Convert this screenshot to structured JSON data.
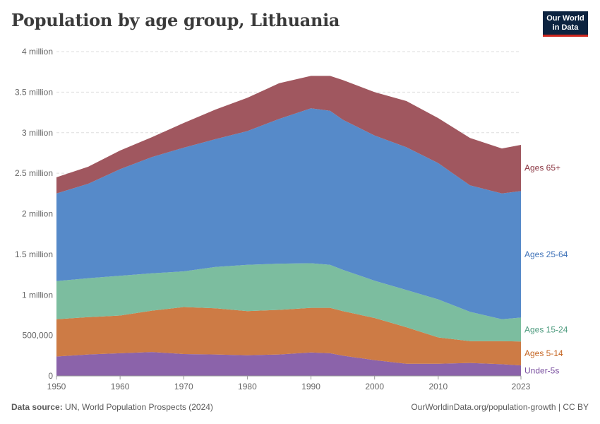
{
  "title": "Population by age group, Lithuania",
  "logo": {
    "line1": "Our World",
    "line2": "in Data"
  },
  "footer": {
    "source_label": "Data source:",
    "source_text": "UN, World Population Prospects (2024)",
    "attribution": "OurWorldinData.org/population-growth | CC BY"
  },
  "colors": {
    "Under-5s": "#8b63aa",
    "Ages 5-14": "#cd7b45",
    "Ages 15-24": "#7cbd9f",
    "Ages 25-64": "#568ac9",
    "Ages 65+": "#a0575f",
    "Under-5s_text": "#7a4fa0",
    "Ages 5-14_text": "#c4631f",
    "Ages 15-24_text": "#4c9a7d",
    "Ages 25-64_text": "#3d71b8",
    "Ages 65+_text": "#8a3541"
  },
  "chart_data": {
    "type": "area",
    "stacked": true,
    "title": "Population by age group, Lithuania",
    "xlabel": "",
    "ylabel": "",
    "xlim": [
      1950,
      2023
    ],
    "ylim": [
      0,
      4000000
    ],
    "grid": true,
    "y_ticks": [
      {
        "value": 0,
        "label": "0"
      },
      {
        "value": 500000,
        "label": "500,000"
      },
      {
        "value": 1000000,
        "label": "1 million"
      },
      {
        "value": 1500000,
        "label": "1.5 million"
      },
      {
        "value": 2000000,
        "label": "2 million"
      },
      {
        "value": 2500000,
        "label": "2.5 million"
      },
      {
        "value": 3000000,
        "label": "3 million"
      },
      {
        "value": 3500000,
        "label": "3.5 million"
      },
      {
        "value": 4000000,
        "label": "4 million"
      }
    ],
    "x_ticks": [
      {
        "value": 1950,
        "label": "1950"
      },
      {
        "value": 1960,
        "label": "1960"
      },
      {
        "value": 1970,
        "label": "1970"
      },
      {
        "value": 1980,
        "label": "1980"
      },
      {
        "value": 1990,
        "label": "1990"
      },
      {
        "value": 2000,
        "label": "2000"
      },
      {
        "value": 2010,
        "label": "2010"
      },
      {
        "value": 2023,
        "label": "2023"
      }
    ],
    "x": [
      1950,
      1955,
      1960,
      1965,
      1970,
      1975,
      1980,
      1985,
      1990,
      1993,
      1995,
      2000,
      2005,
      2010,
      2015,
      2020,
      2023
    ],
    "series": [
      {
        "name": "Under-5s",
        "values": [
          240000,
          265000,
          280000,
          295000,
          270000,
          265000,
          255000,
          265000,
          290000,
          280000,
          250000,
          195000,
          150000,
          150000,
          160000,
          145000,
          130000
        ]
      },
      {
        "name": "Ages 5-14",
        "values": [
          460000,
          460000,
          465000,
          510000,
          580000,
          570000,
          545000,
          550000,
          550000,
          560000,
          550000,
          520000,
          450000,
          325000,
          270000,
          285000,
          295000
        ]
      },
      {
        "name": "Ages 15-24",
        "values": [
          470000,
          480000,
          490000,
          460000,
          440000,
          510000,
          570000,
          570000,
          550000,
          530000,
          510000,
          460000,
          460000,
          470000,
          360000,
          270000,
          295000
        ]
      },
      {
        "name": "Ages 25-64",
        "values": [
          1080000,
          1165000,
          1315000,
          1435000,
          1525000,
          1575000,
          1650000,
          1785000,
          1910000,
          1900000,
          1850000,
          1790000,
          1760000,
          1680000,
          1560000,
          1550000,
          1560000
        ]
      },
      {
        "name": "Ages 65+",
        "values": [
          200000,
          210000,
          230000,
          245000,
          305000,
          365000,
          410000,
          440000,
          400000,
          430000,
          490000,
          535000,
          570000,
          555000,
          585000,
          555000,
          570000
        ]
      }
    ]
  }
}
